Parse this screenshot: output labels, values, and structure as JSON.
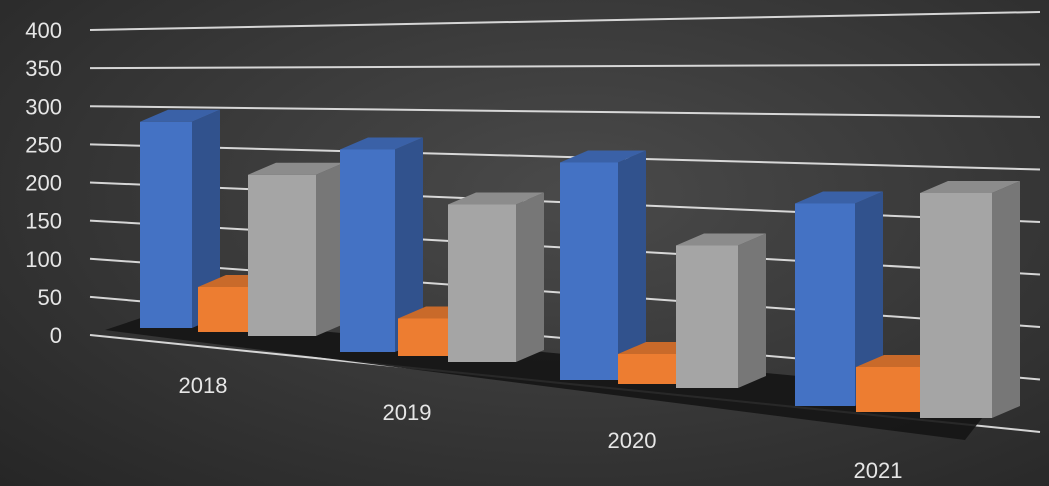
{
  "chart_data": {
    "type": "bar",
    "style": "3d-clustered-column",
    "categories": [
      "2018",
      "2019",
      "2020",
      "2021"
    ],
    "series": [
      {
        "values": [
          275,
          270,
          290,
          270
        ],
        "color": "#4472c4"
      },
      {
        "values": [
          60,
          50,
          40,
          60
        ],
        "color": "#ed7d31"
      },
      {
        "values": [
          215,
          210,
          190,
          300
        ],
        "color": "#a5a5a5"
      }
    ],
    "y_ticks": [
      "0",
      "50",
      "100",
      "150",
      "200",
      "250",
      "300",
      "350",
      "400"
    ],
    "ylim": [
      0,
      400
    ],
    "grid": true,
    "legend": "none"
  }
}
